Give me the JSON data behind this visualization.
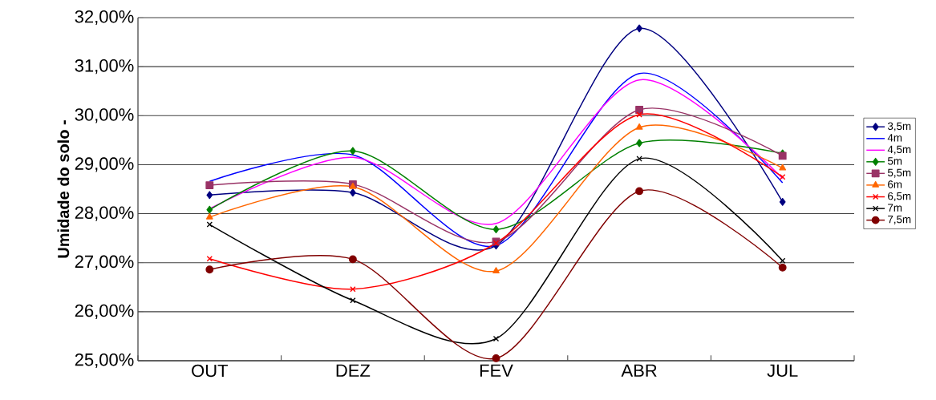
{
  "chart_data": {
    "type": "line",
    "ylabel": "Umidade do solo -",
    "categories": [
      "OUT",
      "DEZ",
      "FEV",
      "ABR",
      "JUL"
    ],
    "ylim": [
      25,
      32
    ],
    "yticks": [
      {
        "value": 25,
        "label": "25,00%"
      },
      {
        "value": 26,
        "label": "26,00%"
      },
      {
        "value": 27,
        "label": "27,00%"
      },
      {
        "value": 28,
        "label": "28,00%"
      },
      {
        "value": 29,
        "label": "29,00%"
      },
      {
        "value": 30,
        "label": "30,00%"
      },
      {
        "value": 31,
        "label": "31,00%"
      },
      {
        "value": 32,
        "label": "32,00%"
      }
    ],
    "grid": "y",
    "legend": "right",
    "line_style": "solid",
    "series": [
      {
        "name": "3,5m",
        "color": "#000080",
        "marker": "diamond",
        "values": [
          28.38,
          28.43,
          27.35,
          31.78,
          28.24
        ]
      },
      {
        "name": "4m",
        "color": "#0000ff",
        "marker": "none",
        "values": [
          28.66,
          29.2,
          27.35,
          30.86,
          28.63
        ]
      },
      {
        "name": "4,5m",
        "color": "#ff00ff",
        "marker": "none",
        "values": [
          28.1,
          29.15,
          27.8,
          30.73,
          28.72
        ]
      },
      {
        "name": "5m",
        "color": "#008000",
        "marker": "diamond",
        "values": [
          28.08,
          29.28,
          27.68,
          29.44,
          29.23
        ]
      },
      {
        "name": "5,5m",
        "color": "#993366",
        "marker": "square",
        "values": [
          28.58,
          28.6,
          27.43,
          30.12,
          29.18
        ]
      },
      {
        "name": "6m",
        "color": "#ff6600",
        "marker": "triangle",
        "values": [
          27.93,
          28.55,
          26.83,
          29.76,
          28.93
        ]
      },
      {
        "name": "6,5m",
        "color": "#ff0000",
        "marker": "cross",
        "values": [
          27.08,
          26.46,
          27.4,
          30.02,
          28.75
        ]
      },
      {
        "name": "7m",
        "color": "#000000",
        "marker": "cross",
        "values": [
          27.78,
          26.23,
          25.45,
          29.12,
          27.04
        ]
      },
      {
        "name": "7,5m",
        "color": "#800000",
        "marker": "circle",
        "values": [
          26.86,
          27.07,
          25.05,
          28.46,
          26.9
        ]
      }
    ]
  }
}
